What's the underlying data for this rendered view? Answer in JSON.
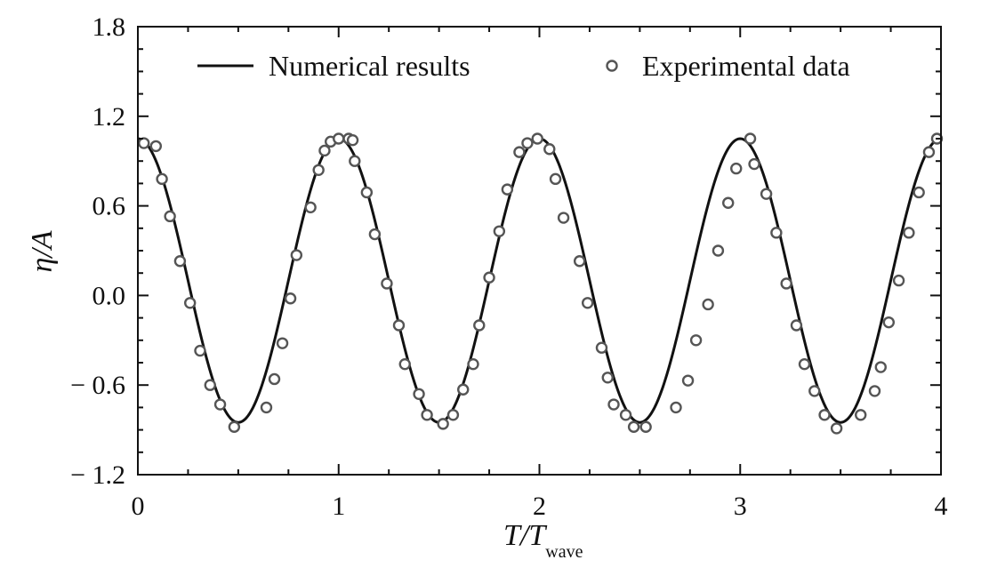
{
  "chart_data": {
    "type": "line",
    "xlabel": {
      "main": "T/T",
      "sub": "wave"
    },
    "ylabel": {
      "main": "η/A"
    },
    "xlim": [
      0,
      4
    ],
    "ylim": [
      -1.2,
      1.8
    ],
    "x_ticks": [
      "0",
      "1",
      "2",
      "3",
      "4"
    ],
    "y_ticks": [
      "1.8",
      "1.2",
      "0.6",
      "0.0",
      "− 0.6",
      "− 1.2"
    ],
    "y_tick_values": [
      1.8,
      1.2,
      0.6,
      0.0,
      -0.6,
      -1.2
    ],
    "x_tick_values": [
      0,
      1,
      2,
      3,
      4
    ],
    "grid": false,
    "legend_position": "top",
    "series": [
      {
        "name": "Numerical results",
        "kind": "line",
        "color": "#111111",
        "function": "0.1 + 0.95*cos(2*pi*x)",
        "x": [
          0,
          0.25,
          0.5,
          0.75,
          1,
          1.25,
          1.5,
          1.75,
          2,
          2.25,
          2.5,
          2.75,
          3,
          3.25,
          3.5,
          3.75,
          4
        ],
        "y": [
          1.05,
          0.1,
          -0.85,
          0.1,
          1.05,
          0.1,
          -0.85,
          0.1,
          1.05,
          0.1,
          -0.85,
          0.1,
          1.05,
          0.1,
          -0.85,
          0.1,
          1.05
        ]
      },
      {
        "name": "Experimental data",
        "kind": "scatter",
        "color": "#555555",
        "x": [
          0.03,
          0.09,
          0.12,
          0.16,
          0.21,
          0.26,
          0.31,
          0.36,
          0.41,
          0.48,
          0.64,
          0.68,
          0.72,
          0.76,
          0.79,
          0.86,
          0.9,
          0.93,
          0.96,
          1.0,
          1.05,
          1.07,
          1.08,
          1.14,
          1.18,
          1.24,
          1.3,
          1.33,
          1.4,
          1.44,
          1.52,
          1.57,
          1.62,
          1.67,
          1.7,
          1.75,
          1.8,
          1.84,
          1.9,
          1.94,
          1.99,
          2.05,
          2.08,
          2.12,
          2.2,
          2.24,
          2.31,
          2.34,
          2.37,
          2.43,
          2.47,
          2.53,
          2.68,
          2.74,
          2.78,
          2.84,
          2.89,
          2.94,
          2.98,
          3.05,
          3.07,
          3.13,
          3.18,
          3.23,
          3.28,
          3.32,
          3.37,
          3.42,
          3.48,
          3.6,
          3.67,
          3.7,
          3.74,
          3.79,
          3.84,
          3.89,
          3.94,
          3.98
        ],
        "y": [
          1.02,
          1.0,
          0.78,
          0.53,
          0.23,
          -0.05,
          -0.37,
          -0.6,
          -0.73,
          -0.88,
          -0.75,
          -0.56,
          -0.32,
          -0.02,
          0.27,
          0.59,
          0.84,
          0.97,
          1.03,
          1.05,
          1.05,
          1.04,
          0.9,
          0.69,
          0.41,
          0.08,
          -0.2,
          -0.46,
          -0.66,
          -0.8,
          -0.86,
          -0.8,
          -0.63,
          -0.46,
          -0.2,
          0.12,
          0.43,
          0.71,
          0.96,
          1.02,
          1.05,
          0.98,
          0.78,
          0.52,
          0.23,
          -0.05,
          -0.35,
          -0.55,
          -0.73,
          -0.8,
          -0.88,
          -0.88,
          -0.75,
          -0.57,
          -0.3,
          -0.06,
          0.3,
          0.62,
          0.85,
          1.05,
          0.88,
          0.68,
          0.42,
          0.08,
          -0.2,
          -0.46,
          -0.64,
          -0.8,
          -0.89,
          -0.8,
          -0.64,
          -0.48,
          -0.18,
          0.1,
          0.42,
          0.69,
          0.96,
          1.05
        ]
      }
    ]
  }
}
